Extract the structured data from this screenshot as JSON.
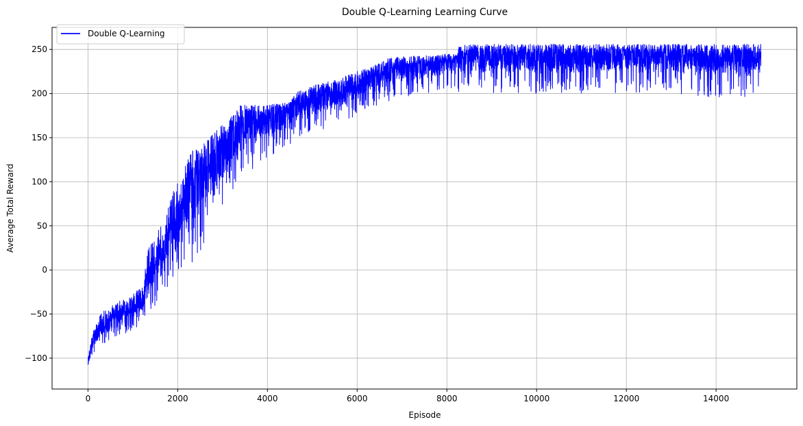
{
  "chart_data": {
    "type": "line",
    "title": "Double Q-Learning Learning Curve",
    "xlabel": "Episode",
    "ylabel": "Average Total Reward",
    "xlim": [
      -800,
      15800
    ],
    "ylim": [
      -135,
      275
    ],
    "xticks": [
      0,
      2000,
      4000,
      6000,
      8000,
      10000,
      12000,
      14000
    ],
    "yticks": [
      -100,
      -50,
      0,
      50,
      100,
      150,
      200,
      250
    ],
    "grid": true,
    "legend_position": "top-left",
    "series": [
      {
        "name": "Double Q-Learning",
        "color": "#0000ff",
        "envelope": {
          "x": [
            0,
            100,
            300,
            600,
            900,
            1200,
            1300,
            1500,
            1700,
            1900,
            2100,
            2300,
            2500,
            2700,
            2900,
            3100,
            3300,
            3400,
            3600,
            4000,
            4500,
            4600,
            5000,
            5500,
            6000,
            6300,
            6700,
            7000,
            7500,
            8000,
            8200,
            8300,
            9000,
            10000,
            11000,
            12000,
            13000,
            13900,
            14500,
            15000
          ],
          "high": [
            -100,
            -70,
            -48,
            -38,
            -30,
            -20,
            20,
            40,
            55,
            90,
            110,
            140,
            140,
            150,
            160,
            170,
            180,
            187,
            187,
            187,
            190,
            200,
            210,
            215,
            225,
            230,
            240,
            242,
            243,
            245,
            246,
            256,
            256,
            256,
            256,
            256,
            256,
            256,
            256,
            256
          ],
          "low": [
            -117,
            -97,
            -85,
            -78,
            -70,
            -62,
            -55,
            -40,
            -25,
            -18,
            -10,
            0,
            20,
            40,
            55,
            75,
            90,
            100,
            110,
            120,
            140,
            150,
            155,
            165,
            175,
            185,
            190,
            195,
            200,
            205,
            205,
            200,
            200,
            200,
            200,
            200,
            200,
            195,
            195,
            195
          ],
          "mid": [
            -110,
            -85,
            -72,
            -62,
            -54,
            -45,
            -30,
            -10,
            10,
            30,
            55,
            75,
            90,
            105,
            120,
            130,
            140,
            150,
            160,
            170,
            175,
            180,
            185,
            195,
            205,
            212,
            220,
            225,
            228,
            232,
            235,
            238,
            240,
            240,
            240,
            240,
            240,
            238,
            238,
            238
          ]
        },
        "episodes": 15000
      }
    ]
  }
}
